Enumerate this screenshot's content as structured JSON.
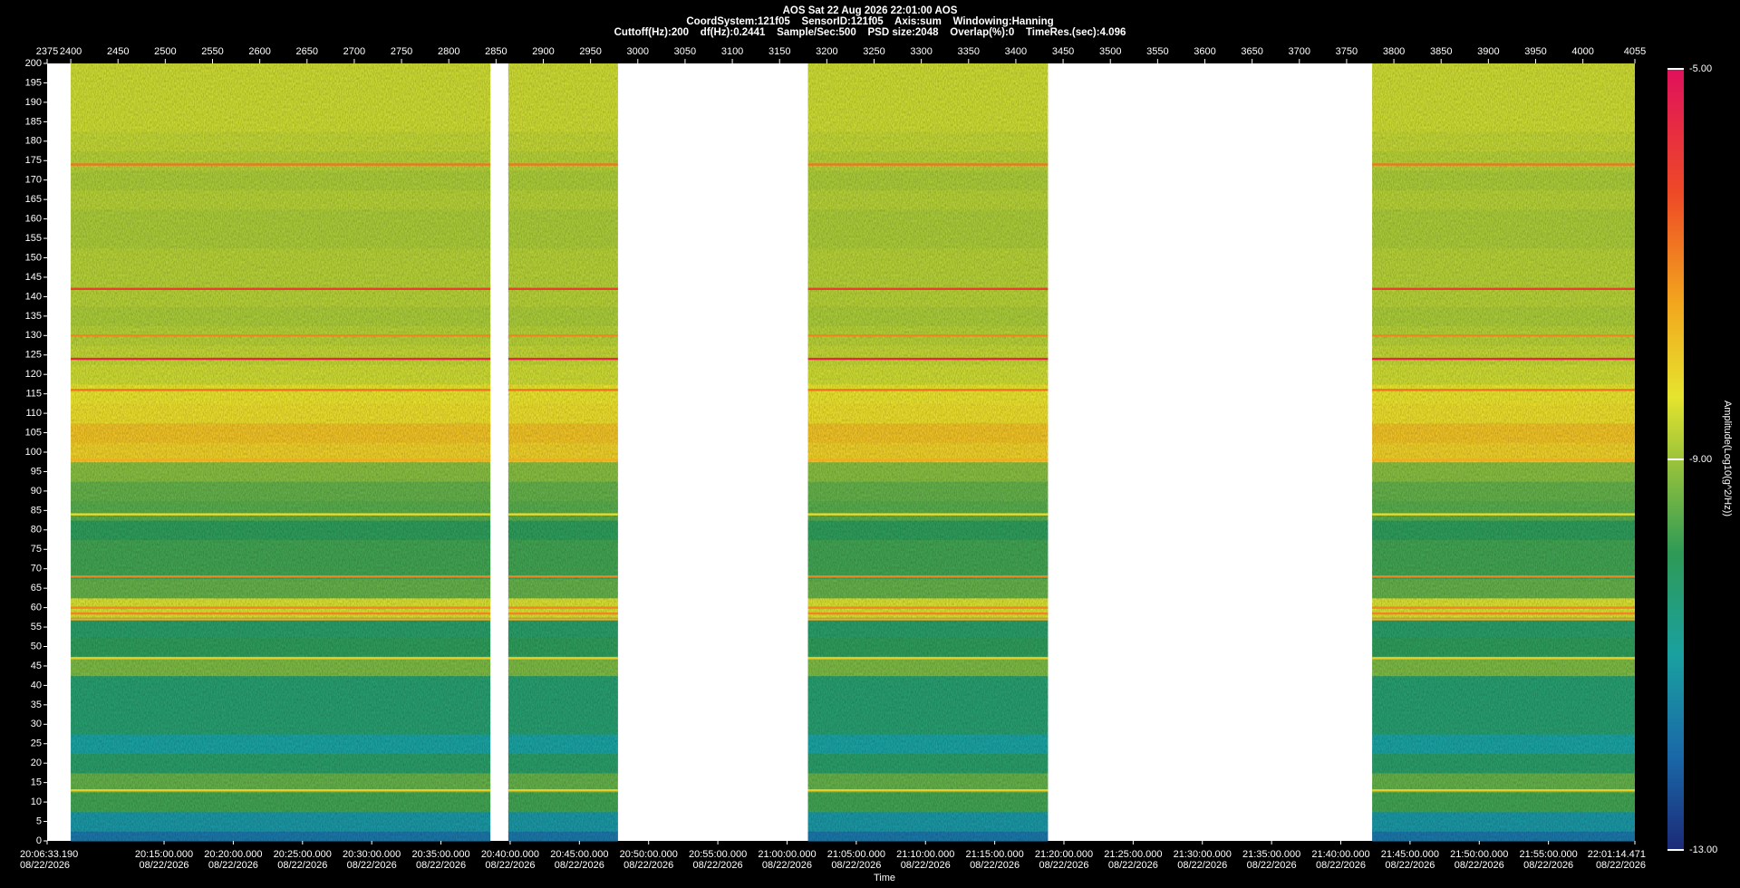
{
  "chart_data": {
    "type": "spectrogram",
    "title": "AOS  Sat 22 Aug 2026 22:01:00  AOS",
    "info_lines": [
      "CoordSystem:121f05    SensorID:121f05    Axis:sum    Windowing:Hanning",
      "Cuttoff(Hz):200    df(Hz):0.2441    Sample/Sec:500    PSD size:2048    Overlap(%):0    TimeRes.(sec):4.096"
    ],
    "xlim": [
      2375,
      4055
    ],
    "xticks": [
      2375,
      2400,
      2450,
      2500,
      2550,
      2600,
      2650,
      2700,
      2750,
      2800,
      2850,
      2900,
      2950,
      3000,
      3050,
      3100,
      3150,
      3200,
      3250,
      3300,
      3350,
      3400,
      3450,
      3500,
      3550,
      3600,
      3650,
      3700,
      3750,
      3800,
      3850,
      3900,
      3950,
      4000,
      4055
    ],
    "ylim": [
      0,
      200
    ],
    "yticks": [
      0,
      5,
      10,
      15,
      20,
      25,
      30,
      35,
      40,
      45,
      50,
      55,
      60,
      65,
      70,
      75,
      80,
      85,
      90,
      95,
      100,
      105,
      110,
      115,
      120,
      125,
      130,
      135,
      140,
      145,
      150,
      155,
      160,
      165,
      170,
      175,
      180,
      185,
      190,
      195,
      200
    ],
    "x_label": "Time",
    "time_ticks": [
      {
        "time": "20:06:33.190",
        "date": "08/22/2026"
      },
      {
        "time": "20:15:00.000",
        "date": "08/22/2026"
      },
      {
        "time": "20:20:00.000",
        "date": "08/22/2026"
      },
      {
        "time": "20:25:00.000",
        "date": "08/22/2026"
      },
      {
        "time": "20:30:00.000",
        "date": "08/22/2026"
      },
      {
        "time": "20:35:00.000",
        "date": "08/22/2026"
      },
      {
        "time": "20:40:00.000",
        "date": "08/22/2026"
      },
      {
        "time": "20:45:00.000",
        "date": "08/22/2026"
      },
      {
        "time": "20:50:00.000",
        "date": "08/22/2026"
      },
      {
        "time": "20:55:00.000",
        "date": "08/22/2026"
      },
      {
        "time": "21:00:00.000",
        "date": "08/22/2026"
      },
      {
        "time": "21:05:00.000",
        "date": "08/22/2026"
      },
      {
        "time": "21:10:00.000",
        "date": "08/22/2026"
      },
      {
        "time": "21:15:00.000",
        "date": "08/22/2026"
      },
      {
        "time": "21:20:00.000",
        "date": "08/22/2026"
      },
      {
        "time": "21:25:00.000",
        "date": "08/22/2026"
      },
      {
        "time": "21:30:00.000",
        "date": "08/22/2026"
      },
      {
        "time": "21:35:00.000",
        "date": "08/22/2026"
      },
      {
        "time": "21:40:00.000",
        "date": "08/22/2026"
      },
      {
        "time": "21:45:00.000",
        "date": "08/22/2026"
      },
      {
        "time": "21:50:00.000",
        "date": "08/22/2026"
      },
      {
        "time": "21:55:00.000",
        "date": "08/22/2026"
      },
      {
        "time": "22:01:14.471",
        "date": "08/22/2026"
      }
    ],
    "segments": [
      {
        "start": 2400,
        "end": 2844
      },
      {
        "start": 2863,
        "end": 2979
      },
      {
        "start": 3180,
        "end": 3434
      },
      {
        "start": 3777,
        "end": 4055
      }
    ],
    "profile": {
      "freqs": [
        0,
        5,
        10,
        15,
        20,
        25,
        30,
        35,
        40,
        45,
        50,
        55,
        60,
        65,
        70,
        75,
        80,
        85,
        90,
        95,
        100,
        105,
        110,
        115,
        120,
        125,
        130,
        135,
        140,
        145,
        150,
        155,
        160,
        165,
        170,
        175,
        180,
        185,
        190,
        195,
        200
      ],
      "levels": [
        -11.8,
        -11.2,
        -9.8,
        -9.5,
        -10.2,
        -11,
        -10.3,
        -10.3,
        -10.3,
        -9.3,
        -10,
        -10.2,
        -8.5,
        -9.5,
        -9.8,
        -9.8,
        -10,
        -9.6,
        -9.5,
        -9.2,
        -8,
        -7.8,
        -8.2,
        -8.3,
        -8.6,
        -8.7,
        -8.8,
        -8.9,
        -8.8,
        -8.8,
        -8.8,
        -8.9,
        -8.9,
        -8.8,
        -8.9,
        -8.8,
        -8.7,
        -8.6,
        -8.6,
        -8.6,
        -8.6
      ]
    },
    "lines": [
      {
        "freq": 174,
        "level": -6.8
      },
      {
        "freq": 142,
        "level": -6
      },
      {
        "freq": 130,
        "level": -7
      },
      {
        "freq": 124,
        "level": -5.5
      },
      {
        "freq": 116,
        "level": -6.8
      },
      {
        "freq": 98,
        "level": -7.5
      },
      {
        "freq": 84,
        "level": -8.2
      },
      {
        "freq": 68,
        "level": -7
      },
      {
        "freq": 60,
        "level": -7
      },
      {
        "freq": 58.5,
        "level": -7
      },
      {
        "freq": 57,
        "level": -7.5
      },
      {
        "freq": 47,
        "level": -8
      },
      {
        "freq": 13,
        "level": -8
      }
    ],
    "colorbar": {
      "label": "Amplitude(Log10(g^2/Hz))",
      "lim": [
        -13,
        -5
      ],
      "ticks": [
        {
          "value": -5,
          "label": "-5.00"
        },
        {
          "value": -9,
          "label": "-9.00"
        },
        {
          "value": -13,
          "label": "-13.00"
        }
      ]
    }
  }
}
